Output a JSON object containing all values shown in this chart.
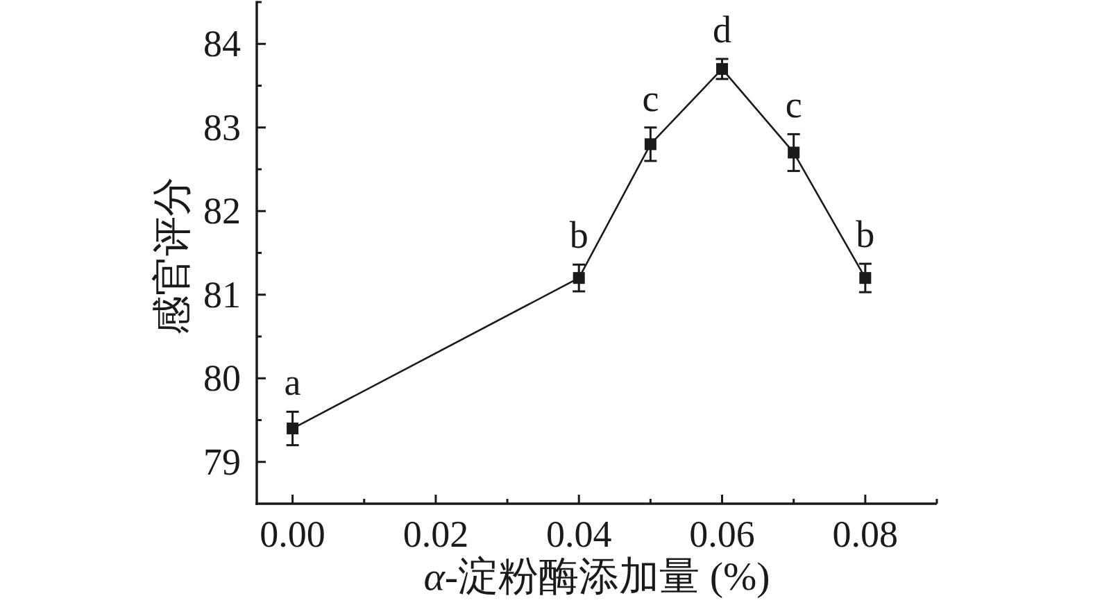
{
  "chart_data": {
    "type": "line",
    "xlabel": "α-淀粉酶添加量 (%)",
    "ylabel": "感官评分",
    "x": [
      0,
      0.04,
      0.05,
      0.06,
      0.07,
      0.08
    ],
    "series": [
      {
        "color": "#1a1a1a",
        "values": [
          79.4,
          81.2,
          82.8,
          83.7,
          82.7,
          81.2
        ],
        "errors": [
          0.2,
          0.16,
          0.2,
          0.12,
          0.22,
          0.17
        ]
      }
    ],
    "xlim": [
      -0.005,
      0.09
    ],
    "ylim": [
      78.5,
      84.5
    ],
    "xticks": [
      {
        "value": 0,
        "label": "0.00"
      },
      {
        "value": 0.02,
        "label": "0.02"
      },
      {
        "value": 0.04,
        "label": "0.04"
      },
      {
        "value": 0.06,
        "label": "0.06"
      },
      {
        "value": 0.08,
        "label": "0.08"
      }
    ],
    "yticks": [
      79,
      80,
      81,
      82,
      83,
      84
    ],
    "marker": "square",
    "line_style": "solid",
    "grid": false,
    "annotations": [
      {
        "text": "a",
        "x": 0,
        "y": 79.4
      },
      {
        "text": "b",
        "x": 0.04,
        "y": 81.2
      },
      {
        "text": "c",
        "x": 0.05,
        "y": 82.8
      },
      {
        "text": "d",
        "x": 0.06,
        "y": 83.7
      },
      {
        "text": "c",
        "x": 0.07,
        "y": 82.7
      },
      {
        "text": "b",
        "x": 0.08,
        "y": 81.2
      }
    ]
  }
}
